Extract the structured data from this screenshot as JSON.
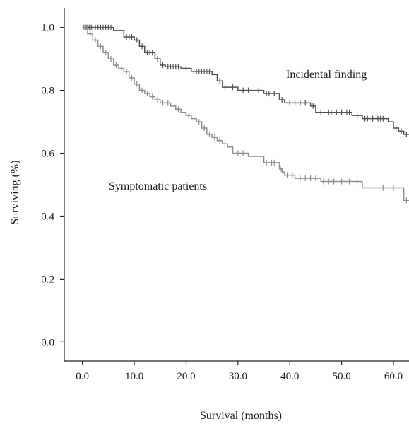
{
  "chart_data": {
    "type": "line",
    "xlabel": "Survival (months)",
    "ylabel": "Surviving (%)",
    "xlim": [
      -3.5,
      63
    ],
    "ylim": [
      -0.06,
      1.06
    ],
    "x_ticks": [
      "0.0",
      "10.0",
      "20.0",
      "30.0",
      "40.0",
      "50.0",
      "60.0"
    ],
    "y_ticks": [
      "0.0",
      "0.2",
      "0.4",
      "0.6",
      "0.8",
      "1.0"
    ],
    "grid": false,
    "series": [
      {
        "name": "Incidental finding",
        "color": "#505050",
        "steps": [
          [
            0,
            1.0
          ],
          [
            6,
            0.99
          ],
          [
            8,
            0.97
          ],
          [
            10,
            0.96
          ],
          [
            11,
            0.94
          ],
          [
            12,
            0.92
          ],
          [
            14,
            0.9
          ],
          [
            15,
            0.88
          ],
          [
            16,
            0.875
          ],
          [
            19,
            0.87
          ],
          [
            21,
            0.86
          ],
          [
            25,
            0.85
          ],
          [
            26,
            0.83
          ],
          [
            27,
            0.81
          ],
          [
            30,
            0.8
          ],
          [
            35,
            0.79
          ],
          [
            38,
            0.77
          ],
          [
            39,
            0.76
          ],
          [
            44,
            0.75
          ],
          [
            45,
            0.73
          ],
          [
            52,
            0.72
          ],
          [
            54,
            0.71
          ],
          [
            59,
            0.7
          ],
          [
            60,
            0.68
          ],
          [
            61,
            0.67
          ],
          [
            62,
            0.66
          ]
        ],
        "censor_x": [
          0.3,
          0.6,
          1,
          1.3,
          1.7,
          2,
          2.5,
          3,
          3.5,
          4,
          4.5,
          5,
          5.5,
          8.5,
          9,
          9.5,
          10.5,
          11.5,
          12.5,
          13,
          13.5,
          14.5,
          15.5,
          16.5,
          17,
          17.5,
          18,
          18.5,
          20,
          21.5,
          22,
          22.5,
          23,
          23.5,
          24,
          24.5,
          26.5,
          27.5,
          29,
          31,
          32,
          34,
          35.5,
          36,
          37,
          38.5,
          40,
          41,
          42,
          43,
          44.5,
          46,
          47.5,
          48,
          49,
          50,
          51,
          51.5,
          53,
          54.5,
          55,
          56,
          57,
          57.5,
          58,
          60.5,
          61.5,
          62.5
        ]
      },
      {
        "name": "Symptomatic patients",
        "color": "#8c8c8c",
        "steps": [
          [
            0,
            1.0
          ],
          [
            1,
            0.98
          ],
          [
            2,
            0.96
          ],
          [
            3,
            0.94
          ],
          [
            4,
            0.92
          ],
          [
            5,
            0.9
          ],
          [
            6,
            0.88
          ],
          [
            7,
            0.87
          ],
          [
            8,
            0.86
          ],
          [
            9,
            0.84
          ],
          [
            10,
            0.82
          ],
          [
            11,
            0.8
          ],
          [
            12,
            0.79
          ],
          [
            13,
            0.78
          ],
          [
            14,
            0.77
          ],
          [
            15,
            0.76
          ],
          [
            17,
            0.75
          ],
          [
            18,
            0.74
          ],
          [
            19,
            0.73
          ],
          [
            20,
            0.72
          ],
          [
            21,
            0.71
          ],
          [
            22,
            0.7
          ],
          [
            23,
            0.68
          ],
          [
            24,
            0.66
          ],
          [
            25,
            0.65
          ],
          [
            26,
            0.64
          ],
          [
            27,
            0.63
          ],
          [
            28,
            0.62
          ],
          [
            29,
            0.6
          ],
          [
            32,
            0.59
          ],
          [
            35,
            0.57
          ],
          [
            38,
            0.55
          ],
          [
            38.5,
            0.54
          ],
          [
            39,
            0.53
          ],
          [
            41,
            0.52
          ],
          [
            46,
            0.51
          ],
          [
            54,
            0.49
          ],
          [
            62,
            0.45
          ]
        ],
        "censor_x": [
          0.3,
          0.8,
          1.5,
          2.5,
          3.5,
          4.5,
          5.5,
          6.5,
          7.5,
          8.5,
          9.5,
          10.5,
          11.5,
          12.5,
          13.5,
          14.5,
          15.5,
          16.5,
          18.5,
          20.5,
          22.5,
          23.5,
          24.5,
          25.5,
          26.5,
          27.5,
          30,
          31,
          35.5,
          36.5,
          37,
          38.2,
          39.5,
          40.5,
          42,
          43,
          44,
          45,
          46.5,
          47.5,
          48.5,
          50,
          51.5,
          53,
          58,
          60,
          62.5
        ]
      }
    ],
    "annotations": [
      "Incidental finding",
      "Symptomatic patients"
    ]
  }
}
